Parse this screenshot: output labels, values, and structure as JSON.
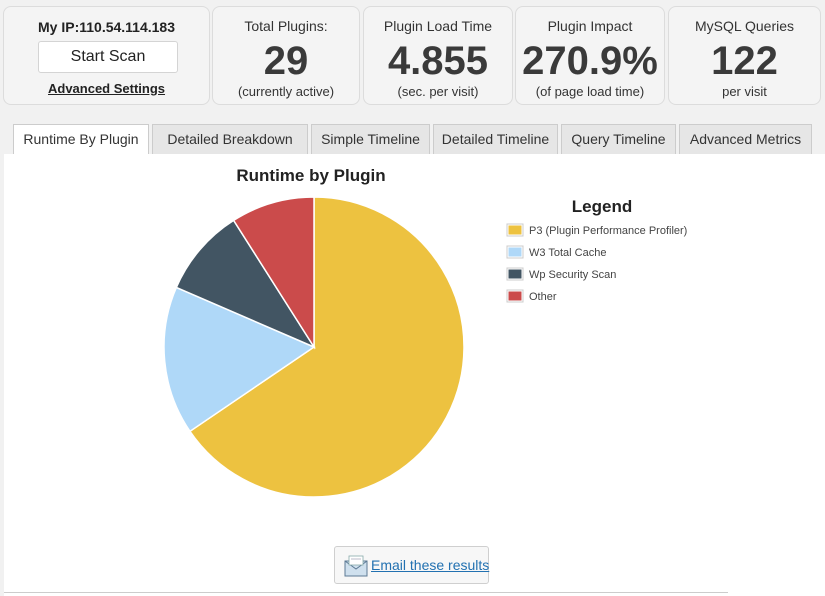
{
  "ip_card": {
    "ip_label": "My IP:110.54.114.183",
    "scan_button": "Start Scan",
    "advanced_link": "Advanced Settings"
  },
  "stats": [
    {
      "title": "Total Plugins:",
      "value": "29",
      "sub": "(currently active)"
    },
    {
      "title": "Plugin Load Time",
      "value": "4.855",
      "sub": "(sec. per visit)"
    },
    {
      "title": "Plugin Impact",
      "value": "270.9%",
      "sub": "(of page load time)"
    },
    {
      "title": "MySQL Queries",
      "value": "122",
      "sub": "per visit"
    }
  ],
  "tabs": [
    {
      "label": "Runtime By Plugin"
    },
    {
      "label": "Detailed Breakdown"
    },
    {
      "label": "Simple Timeline"
    },
    {
      "label": "Detailed Timeline"
    },
    {
      "label": "Query Timeline"
    },
    {
      "label": "Advanced Metrics"
    }
  ],
  "chart_data": {
    "type": "pie",
    "title": "Runtime by Plugin",
    "legend_title": "Legend",
    "legend_position": "right",
    "slices": [
      {
        "name": "P3 (Plugin Performance Profiler)",
        "value": 65.5,
        "color": "#edc240"
      },
      {
        "name": "W3 Total Cache",
        "value": 16.0,
        "color": "#afd8f8"
      },
      {
        "name": "Wp Security Scan",
        "value": 9.5,
        "color": "#425563"
      },
      {
        "name": "Other",
        "value": 9.0,
        "color": "#cb4b4b"
      }
    ]
  },
  "email": {
    "label": "Email these results",
    "icon": "envelope-icon"
  }
}
